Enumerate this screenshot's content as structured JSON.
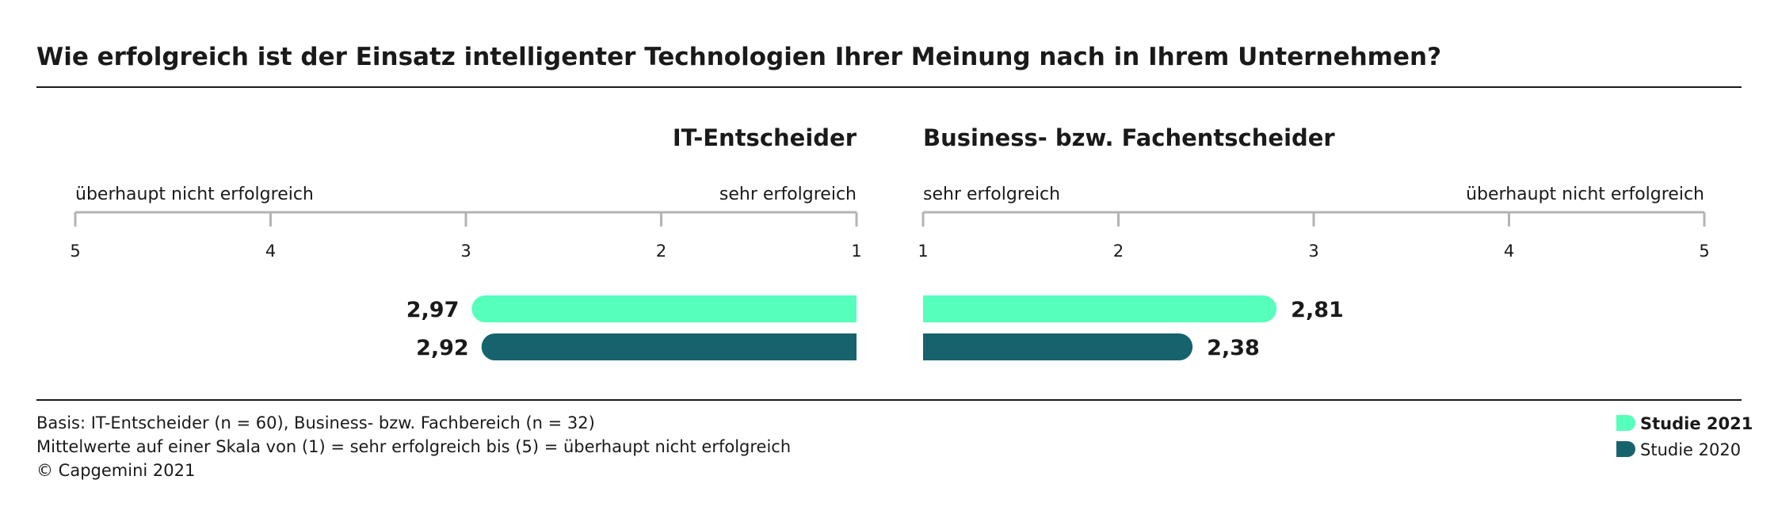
{
  "chart_data": {
    "type": "bar",
    "orientation": "horizontal",
    "title": "Wie erfolgreich ist der Einsatz intelligenter Technologien Ihrer Meinung nach in Ihrem Unternehmen?",
    "colors": {
      "Studie 2021": "#56ffbb",
      "Studie 2020": "#16636d",
      "axis": "#b3b3b3",
      "rule": "#1a1a1a"
    },
    "panels": [
      {
        "title": "IT-Entscheider",
        "label_left": "überhaupt nicht erfolgreich",
        "label_right": "sehr erfolgreich",
        "ticks": [
          "5",
          "4",
          "3",
          "2",
          "1"
        ],
        "axis_range": [
          5,
          1
        ],
        "series": [
          {
            "name": "Studie 2021",
            "value": 2.97,
            "label": "2,97"
          },
          {
            "name": "Studie 2020",
            "value": 2.92,
            "label": "2,92"
          }
        ]
      },
      {
        "title": "Business- bzw. Fachentscheider",
        "label_left": "sehr erfolgreich",
        "label_right": "überhaupt nicht erfolgreich",
        "ticks": [
          "1",
          "2",
          "3",
          "4",
          "5"
        ],
        "axis_range": [
          1,
          5
        ],
        "series": [
          {
            "name": "Studie 2021",
            "value": 2.81,
            "label": "2,81"
          },
          {
            "name": "Studie 2020",
            "value": 2.38,
            "label": "2,38"
          }
        ]
      }
    ],
    "legend": [
      {
        "name": "Studie 2021",
        "bold": true
      },
      {
        "name": "Studie 2020",
        "bold": false
      }
    ],
    "legend_position": "bottom-right",
    "footnotes": [
      "Basis: IT-Entscheider (n = 60), Business- bzw. Fachbereich (n = 32)",
      "Mittelwerte auf einer Skala von (1) = sehr erfolgreich bis (5) = überhaupt nicht erfolgreich",
      "© Capgemini 2021"
    ]
  }
}
